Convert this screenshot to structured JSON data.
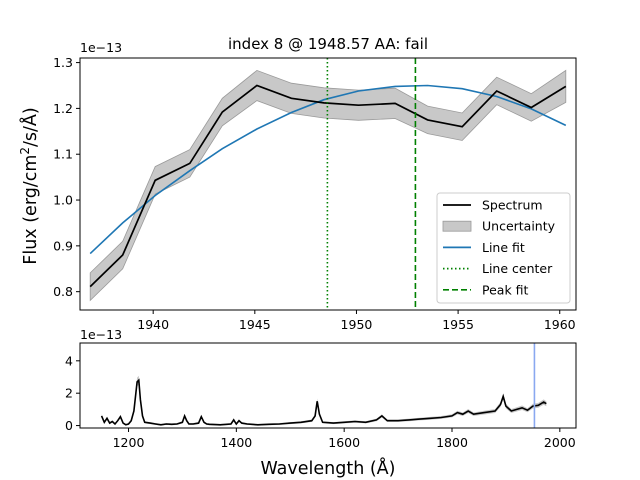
{
  "chart_data": [
    {
      "type": "line",
      "title": "index 8 @ 1948.57 AA: fail",
      "ylabel": "Flux (erg/cm²/s/Å)",
      "xlabel": "",
      "y_scale_label": "1e−13",
      "xlim": [
        1936.4,
        1960.8
      ],
      "ylim": [
        0.76,
        1.31
      ],
      "x_ticks": [
        "1940",
        "1945",
        "1950",
        "1955",
        "1960"
      ],
      "y_ticks": [
        "0.8",
        "0.9",
        "1.0",
        "1.1",
        "1.2",
        "1.3"
      ],
      "x_tick_values": [
        1940,
        1945,
        1950,
        1955,
        1960
      ],
      "y_tick_values": [
        0.8,
        0.9,
        1.0,
        1.1,
        1.2,
        1.3
      ],
      "legend_position": "bottom-right",
      "legend": [
        "Spectrum",
        "Uncertainty",
        "Line fit",
        "Line center",
        "Peak fit"
      ],
      "colors": {
        "spectrum": "#000000",
        "uncertainty": "#bbbbbb",
        "line_fit": "#1f77b4",
        "line_center": "#008000",
        "peak_fit": "#008000"
      },
      "spectrum": {
        "x": [
          1936.9,
          1938.5,
          1940.1,
          1941.8,
          1943.4,
          1945.1,
          1946.8,
          1948.4,
          1950.1,
          1951.9,
          1953.5,
          1955.2,
          1956.9,
          1958.6,
          1960.3
        ],
        "y": [
          0.811,
          0.88,
          1.043,
          1.08,
          1.192,
          1.25,
          1.222,
          1.212,
          1.207,
          1.211,
          1.175,
          1.16,
          1.238,
          1.202,
          1.248
        ],
        "err": [
          0.03,
          0.03,
          0.03,
          0.03,
          0.03,
          0.033,
          0.033,
          0.033,
          0.033,
          0.033,
          0.03,
          0.03,
          0.03,
          0.03,
          0.035
        ]
      },
      "line_fit": {
        "x": [
          1936.9,
          1938.5,
          1940.1,
          1941.8,
          1943.4,
          1945.1,
          1946.8,
          1948.4,
          1950.1,
          1951.9,
          1953.5,
          1955.2,
          1956.9,
          1958.6,
          1960.3
        ],
        "y": [
          0.883,
          0.95,
          1.01,
          1.064,
          1.112,
          1.155,
          1.191,
          1.219,
          1.238,
          1.248,
          1.25,
          1.243,
          1.226,
          1.199,
          1.163
        ]
      },
      "line_center": 1948.57,
      "peak_fit": 1952.9
    },
    {
      "type": "line",
      "xlabel": "Wavelength (Å)",
      "y_scale_label": "1e−13",
      "xlim": [
        1110,
        2030
      ],
      "ylim": [
        -0.15,
        5.1
      ],
      "x_ticks": [
        "1200",
        "1400",
        "1600",
        "1800",
        "2000"
      ],
      "y_ticks": [
        "0",
        "2",
        "4"
      ],
      "x_tick_values": [
        1200,
        1400,
        1600,
        1800,
        2000
      ],
      "y_tick_values": [
        0,
        2,
        4
      ],
      "marker_line": 1952.9,
      "colors": {
        "spectrum": "#000000",
        "marker": "#8aa8f0"
      },
      "spectrum": {
        "x": [
          1150,
          1155,
          1160,
          1165,
          1170,
          1175,
          1180,
          1185,
          1190,
          1195,
          1200,
          1205,
          1210,
          1213,
          1216,
          1219,
          1222,
          1226,
          1230,
          1240,
          1250,
          1260,
          1270,
          1280,
          1290,
          1300,
          1304,
          1308,
          1312,
          1320,
          1330,
          1335,
          1340,
          1345,
          1350,
          1370,
          1390,
          1395,
          1400,
          1405,
          1410,
          1420,
          1440,
          1460,
          1480,
          1500,
          1520,
          1540,
          1546,
          1550,
          1554,
          1560,
          1580,
          1600,
          1620,
          1640,
          1660,
          1670,
          1680,
          1700,
          1720,
          1740,
          1760,
          1780,
          1800,
          1810,
          1820,
          1830,
          1840,
          1860,
          1880,
          1890,
          1895,
          1900,
          1910,
          1920,
          1930,
          1940,
          1950,
          1960,
          1970,
          1975
        ],
        "y": [
          0.6,
          0.2,
          0.45,
          0.15,
          0.25,
          0.1,
          0.3,
          0.55,
          0.15,
          0.05,
          0.1,
          0.3,
          0.9,
          1.8,
          2.7,
          2.8,
          1.6,
          0.6,
          0.2,
          0.15,
          0.1,
          0.05,
          0.1,
          0.08,
          0.1,
          0.2,
          0.6,
          0.3,
          0.1,
          0.1,
          0.15,
          0.55,
          0.2,
          0.1,
          0.08,
          0.05,
          0.1,
          0.35,
          0.1,
          0.3,
          0.15,
          0.1,
          0.05,
          0.08,
          0.1,
          0.15,
          0.2,
          0.3,
          0.6,
          1.5,
          0.7,
          0.2,
          0.15,
          0.2,
          0.25,
          0.2,
          0.35,
          0.6,
          0.3,
          0.3,
          0.35,
          0.4,
          0.45,
          0.5,
          0.6,
          0.8,
          0.7,
          0.9,
          0.7,
          0.8,
          0.9,
          1.3,
          1.8,
          1.2,
          0.9,
          1.0,
          1.1,
          0.95,
          1.2,
          1.25,
          1.45,
          1.35
        ]
      }
    }
  ]
}
